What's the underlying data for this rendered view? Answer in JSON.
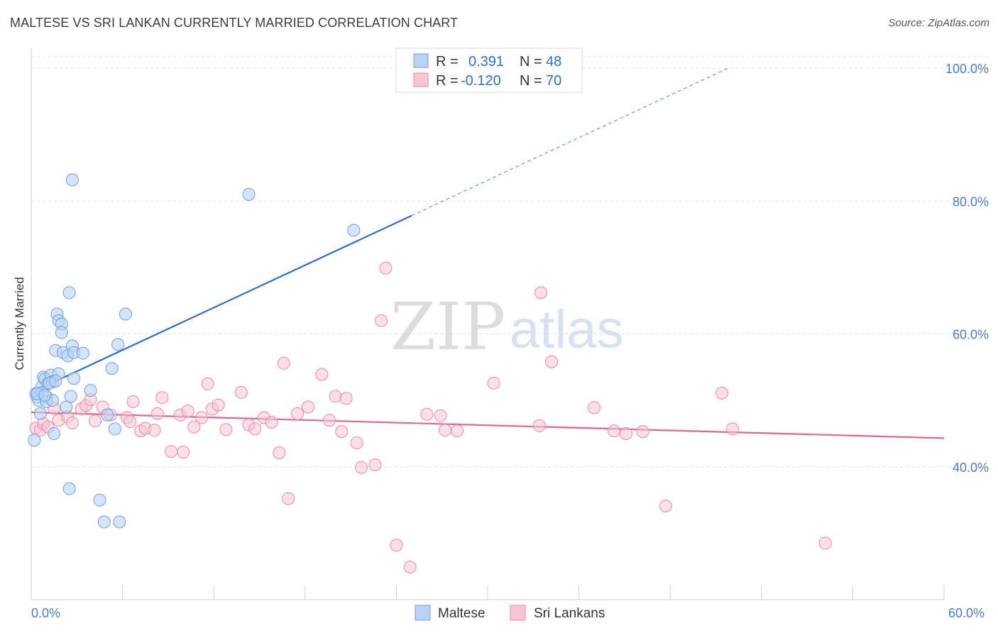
{
  "title": "MALTESE VS SRI LANKAN CURRENTLY MARRIED CORRELATION CHART",
  "source": "Source: ZipAtlas.com",
  "watermark": {
    "zip": "ZIP",
    "atlas": "atlas"
  },
  "legend_top": [
    {
      "r_label": "R =",
      "r_value": "0.391",
      "n_label": "N =",
      "n_value": "48"
    },
    {
      "r_label": "R =",
      "r_value": "-0.120",
      "n_label": "N =",
      "n_value": "70"
    }
  ],
  "legend_bottom": [
    "Maltese",
    "Sri Lankans"
  ],
  "colors": {
    "maltese_fill": "#b9d3f5",
    "maltese_stroke": "#6f9fe0",
    "maltese_line": "#2c6fcf",
    "srilankan_fill": "#f9c4d3",
    "srilankan_stroke": "#e98aa8",
    "srilankan_line": "#e0658f",
    "axis_label": "#4a7cc9",
    "grid": "#e3e3e3"
  },
  "chart_data": {
    "type": "scatter",
    "title": "MALTESE VS SRI LANKAN CURRENTLY MARRIED CORRELATION CHART",
    "xlabel": "",
    "ylabel": "Currently Married",
    "xlim": [
      0,
      60
    ],
    "ylim": [
      20,
      103
    ],
    "x_tick_labels": [
      "0.0%",
      "60.0%"
    ],
    "y_ticks": [
      40,
      60,
      80,
      100
    ],
    "y_tick_labels": [
      "40.0%",
      "60.0%",
      "80.0%",
      "100.0%"
    ],
    "grid": true,
    "legend_position": "top-center",
    "series": [
      {
        "name": "Maltese",
        "r": 0.391,
        "n": 48,
        "trend": {
          "x0": 0.3,
          "y0": 51.5,
          "x1": 25.0,
          "y1": 77.8,
          "dash_to_x": 45.8,
          "dash_to_y": 100.0
        },
        "points": [
          [
            0.2,
            44.0
          ],
          [
            0.3,
            51.0
          ],
          [
            0.4,
            50.5
          ],
          [
            0.5,
            50.0
          ],
          [
            0.6,
            48.0
          ],
          [
            0.7,
            52.0
          ],
          [
            0.7,
            51.2
          ],
          [
            0.8,
            53.5
          ],
          [
            0.9,
            53.2
          ],
          [
            1.0,
            50.5
          ],
          [
            1.0,
            49.8
          ],
          [
            1.1,
            52.5
          ],
          [
            1.3,
            53.8
          ],
          [
            1.4,
            50.0
          ],
          [
            1.4,
            52.8
          ],
          [
            1.5,
            45.0
          ],
          [
            1.6,
            57.5
          ],
          [
            1.7,
            63.0
          ],
          [
            1.8,
            62.0
          ],
          [
            1.8,
            54.0
          ],
          [
            2.0,
            61.5
          ],
          [
            2.0,
            60.2
          ],
          [
            2.1,
            57.2
          ],
          [
            2.3,
            49.0
          ],
          [
            2.4,
            56.7
          ],
          [
            2.5,
            36.7
          ],
          [
            2.5,
            66.2
          ],
          [
            2.6,
            50.6
          ],
          [
            2.7,
            58.2
          ],
          [
            2.7,
            83.2
          ],
          [
            2.8,
            53.3
          ],
          [
            2.8,
            57.2
          ],
          [
            3.4,
            57.1
          ],
          [
            3.9,
            51.5
          ],
          [
            4.5,
            35.0
          ],
          [
            4.8,
            31.7
          ],
          [
            5.0,
            47.8
          ],
          [
            5.3,
            54.8
          ],
          [
            5.5,
            45.7
          ],
          [
            5.7,
            58.4
          ],
          [
            5.8,
            31.7
          ],
          [
            6.2,
            63.0
          ],
          [
            14.3,
            81.0
          ],
          [
            21.2,
            75.6
          ],
          [
            0.4,
            51.0
          ],
          [
            1.2,
            52.6
          ],
          [
            0.9,
            50.8
          ],
          [
            1.6,
            52.9
          ]
        ]
      },
      {
        "name": "Sri Lankans",
        "r": -0.12,
        "n": 70,
        "trend": {
          "x0": 0.0,
          "y0": 48.2,
          "x1": 60.0,
          "y1": 44.3
        },
        "points": [
          [
            0.3,
            45.8
          ],
          [
            0.6,
            45.5
          ],
          [
            0.8,
            46.5
          ],
          [
            1.1,
            46.0
          ],
          [
            1.5,
            48.8
          ],
          [
            1.8,
            47.0
          ],
          [
            2.4,
            47.5
          ],
          [
            2.7,
            46.6
          ],
          [
            3.3,
            48.7
          ],
          [
            3.6,
            49.2
          ],
          [
            3.9,
            50.1
          ],
          [
            4.2,
            46.9
          ],
          [
            4.7,
            49.0
          ],
          [
            5.2,
            47.8
          ],
          [
            6.3,
            47.4
          ],
          [
            6.5,
            46.8
          ],
          [
            6.7,
            49.8
          ],
          [
            7.2,
            45.4
          ],
          [
            7.5,
            45.8
          ],
          [
            8.1,
            45.5
          ],
          [
            8.3,
            48.0
          ],
          [
            8.6,
            50.4
          ],
          [
            9.2,
            42.3
          ],
          [
            9.8,
            47.8
          ],
          [
            10.0,
            42.2
          ],
          [
            10.3,
            48.4
          ],
          [
            10.7,
            46.0
          ],
          [
            11.2,
            47.4
          ],
          [
            11.6,
            52.5
          ],
          [
            11.9,
            48.7
          ],
          [
            12.3,
            49.3
          ],
          [
            12.8,
            45.6
          ],
          [
            13.8,
            51.2
          ],
          [
            14.3,
            46.3
          ],
          [
            14.7,
            45.7
          ],
          [
            15.3,
            47.4
          ],
          [
            15.8,
            46.7
          ],
          [
            16.3,
            42.1
          ],
          [
            16.6,
            55.6
          ],
          [
            16.9,
            35.2
          ],
          [
            17.5,
            48.0
          ],
          [
            18.2,
            49.0
          ],
          [
            19.1,
            53.9
          ],
          [
            19.6,
            47.0
          ],
          [
            20.0,
            50.6
          ],
          [
            20.4,
            45.3
          ],
          [
            20.7,
            50.3
          ],
          [
            21.4,
            43.6
          ],
          [
            21.7,
            39.9
          ],
          [
            22.6,
            40.3
          ],
          [
            23.0,
            62.0
          ],
          [
            23.3,
            69.9
          ],
          [
            24.0,
            28.2
          ],
          [
            24.9,
            24.9
          ],
          [
            26.0,
            47.9
          ],
          [
            26.9,
            47.7
          ],
          [
            27.2,
            45.5
          ],
          [
            28.0,
            45.4
          ],
          [
            30.4,
            52.6
          ],
          [
            33.4,
            46.2
          ],
          [
            33.5,
            66.2
          ],
          [
            34.2,
            55.8
          ],
          [
            37.0,
            48.9
          ],
          [
            38.3,
            45.4
          ],
          [
            39.1,
            45.0
          ],
          [
            40.2,
            45.3
          ],
          [
            41.7,
            34.1
          ],
          [
            45.4,
            51.1
          ],
          [
            46.1,
            45.7
          ],
          [
            52.2,
            28.5
          ]
        ]
      }
    ]
  }
}
